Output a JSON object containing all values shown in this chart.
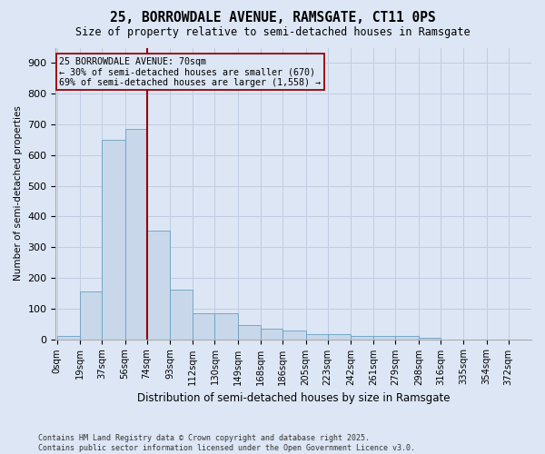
{
  "title": "25, BORROWDALE AVENUE, RAMSGATE, CT11 0PS",
  "subtitle": "Size of property relative to semi-detached houses in Ramsgate",
  "xlabel": "Distribution of semi-detached houses by size in Ramsgate",
  "ylabel": "Number of semi-detached properties",
  "footnote": "Contains HM Land Registry data © Crown copyright and database right 2025.\nContains public sector information licensed under the Open Government Licence v3.0.",
  "bar_color": "#c8d8ea",
  "bar_edge_color": "#6a9fc0",
  "grid_color": "#c0cce0",
  "bg_color": "#dce6f5",
  "property_size_idx": 3,
  "property_line_color": "#990000",
  "annotation_text": "25 BORROWDALE AVENUE: 70sqm\n← 30% of semi-detached houses are smaller (670)\n69% of semi-detached houses are larger (1,558) →",
  "annotation_box_color": "#990000",
  "bin_edges": [
    0,
    19,
    37,
    56,
    74,
    93,
    112,
    130,
    149,
    168,
    186,
    205,
    223,
    242,
    261,
    279,
    298,
    316,
    335,
    354,
    372
  ],
  "bin_labels": [
    "0sqm",
    "19sqm",
    "37sqm",
    "56sqm",
    "74sqm",
    "93sqm",
    "112sqm",
    "130sqm",
    "149sqm",
    "168sqm",
    "186sqm",
    "205sqm",
    "223sqm",
    "242sqm",
    "261sqm",
    "279sqm",
    "298sqm",
    "316sqm",
    "335sqm",
    "354sqm",
    "372sqm"
  ],
  "bar_heights": [
    10,
    155,
    650,
    685,
    355,
    160,
    85,
    85,
    45,
    35,
    28,
    15,
    15,
    10,
    10,
    10,
    5,
    0,
    0,
    0
  ],
  "property_line_x": 74,
  "ylim": [
    0,
    950
  ],
  "yticks": [
    0,
    100,
    200,
    300,
    400,
    500,
    600,
    700,
    800,
    900
  ]
}
